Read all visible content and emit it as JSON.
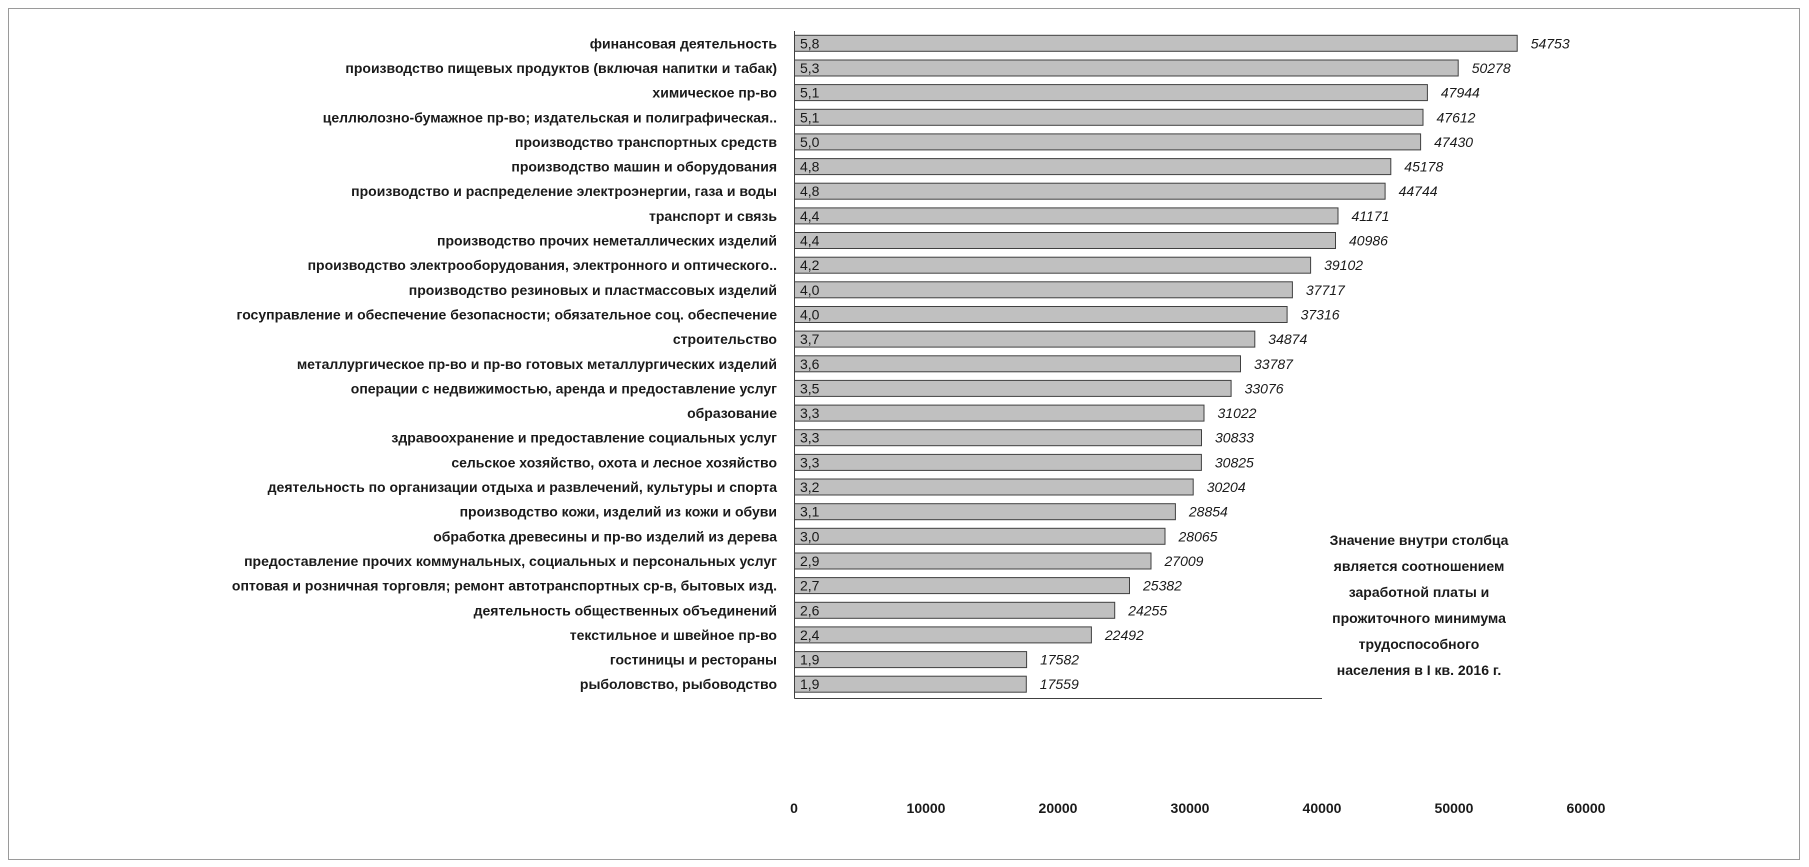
{
  "chart_data": {
    "type": "bar",
    "orientation": "horizontal",
    "categories": [
      "финансовая деятельность",
      "производство пищевых продуктов (включая напитки и табак)",
      "химическое пр-во",
      "целлюлозно-бумажное пр-во; издательская и полиграфическая..",
      "производство транспортных средств",
      "производство машин и оборудования",
      "производство и распределение электроэнергии, газа и воды",
      "транспорт и связь",
      "производство прочих неметаллических изделий",
      "производство электрооборудования, электронного и оптического..",
      "производство резиновых и пластмассовых изделий",
      "госуправление и обеспечение безопасности; обязательное соц. обеспечение",
      "строительство",
      "металлургическое пр-во и пр-во готовых металлургических изделий",
      "операции с недвижимостью, аренда и предоставление услуг",
      "образование",
      "здравоохранение и предоставление социальных услуг",
      "сельское хозяйство, охота и лесное хозяйство",
      "деятельность по организации отдыха и развлечений, культуры и спорта",
      "производство кожи, изделий из кожи и обуви",
      "обработка древесины и пр-во изделий из дерева",
      "предоставление прочих коммунальных, социальных и персональных услуг",
      "оптовая и розничная торговля; ремонт автотранспортных ср-в, бытовых изд.",
      "деятельность общественных объединений",
      "текстильное и швейное пр-во",
      "гостиницы и рестораны",
      "рыболовство, рыбоводство"
    ],
    "values": [
      54753,
      50278,
      47944,
      47612,
      47430,
      45178,
      44744,
      41171,
      40986,
      39102,
      37717,
      37316,
      34874,
      33787,
      33076,
      31022,
      30833,
      30825,
      30204,
      28854,
      28065,
      27009,
      25382,
      24255,
      22492,
      17582,
      17559
    ],
    "value_labels": [
      "54753",
      "50278",
      "47944",
      "47612",
      "47430",
      "45178",
      "44744",
      "41171",
      "40986",
      "39102",
      "37717",
      "37316",
      "34874",
      "33787",
      "33076",
      "31022",
      "30833",
      "30825",
      "30204",
      "28854",
      "28065",
      "27009",
      "25382",
      "24255",
      "22492",
      "17582",
      "17559"
    ],
    "ratios": [
      "5,8",
      "5,3",
      "5,1",
      "5,1",
      "5,0",
      "4,8",
      "4,8",
      "4,4",
      "4,4",
      "4,2",
      "4,0",
      "4,0",
      "3,7",
      "3,6",
      "3,5",
      "3,3",
      "3,3",
      "3,3",
      "3,2",
      "3,1",
      "3,0",
      "2,9",
      "2,7",
      "2,6",
      "2,4",
      "1,9",
      "1,9"
    ],
    "xlim": [
      0,
      60000
    ],
    "xticks": [
      "0",
      "10000",
      "20000",
      "30000",
      "40000",
      "50000",
      "60000"
    ],
    "bar_color": "#c0c0c0",
    "bar_edge_color": "#404040",
    "grid": false
  },
  "note": [
    "Значение внутри столбца",
    "является соотношением",
    "заработной платы и",
    "прожиточного минимума",
    "трудоспособного",
    "населения в I кв. 2016 г."
  ]
}
